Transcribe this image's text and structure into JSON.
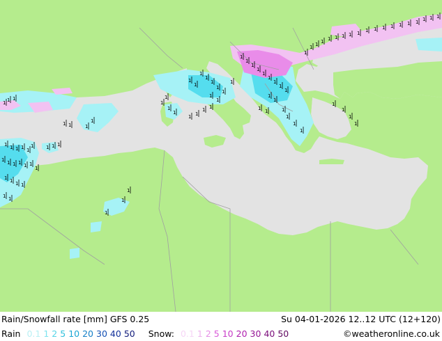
{
  "map": {
    "colors": {
      "land": "#b5ec8d",
      "sea": "#e3e3e3",
      "border": "#a0a0a0",
      "coast": "#8a8a8a",
      "rain_light": "#a6f2f6",
      "rain_mid": "#55ddee",
      "snow_light": "#f2c2f2",
      "snow_mid": "#e98ce9",
      "barb": "#000000"
    }
  },
  "footer": {
    "title": "Rain/Snowfall rate [mm] GFS 0.25",
    "datetime": "Su 04-01-2026 12..12 UTC (12+120)",
    "copyright": "©weatheronline.co.uk",
    "rain_label": "Rain",
    "snow_label": "Snow:",
    "rain_scale": [
      {
        "label": "0.1",
        "color": "#b8f0f4"
      },
      {
        "label": "1",
        "color": "#7fe3ee"
      },
      {
        "label": "2",
        "color": "#55d4e6"
      },
      {
        "label": "5",
        "color": "#2fc0dc"
      },
      {
        "label": "10",
        "color": "#19a6d4"
      },
      {
        "label": "20",
        "color": "#1680c8"
      },
      {
        "label": "30",
        "color": "#1450b4"
      },
      {
        "label": "40",
        "color": "#12309a"
      },
      {
        "label": "50",
        "color": "#101a7a"
      }
    ],
    "snow_scale": [
      {
        "label": "0.1",
        "color": "#f6d6f6"
      },
      {
        "label": "1",
        "color": "#eeb4ee"
      },
      {
        "label": "2",
        "color": "#e690e6"
      },
      {
        "label": "5",
        "color": "#d85cd8"
      },
      {
        "label": "10",
        "color": "#c83cc8"
      },
      {
        "label": "20",
        "color": "#b020b0"
      },
      {
        "label": "30",
        "color": "#951495"
      },
      {
        "label": "40",
        "color": "#7a0c7a"
      },
      {
        "label": "50",
        "color": "#600860"
      }
    ]
  }
}
